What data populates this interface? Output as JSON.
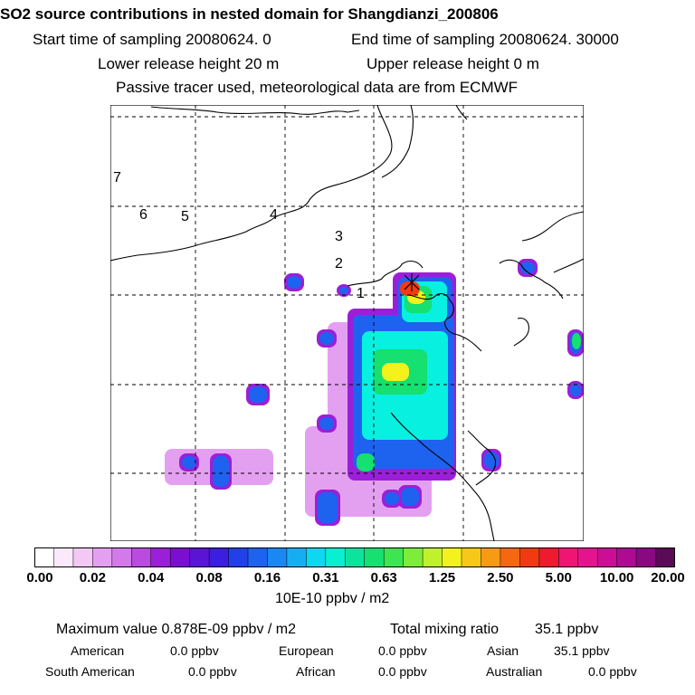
{
  "header": {
    "title": "SO2 source contributions in nested domain for Shangdianzi_200806",
    "start": "Start time of sampling 20080624.     0",
    "end": "End time of sampling 20080624. 30000",
    "lower": "Lower release height   20 m",
    "upper": "Upper release height    0 m",
    "note": "Passive tracer used, meteorological data are from ECMWF"
  },
  "chart_data": {
    "type": "heatmap",
    "title": "SO2 source contributions in nested domain for Shangdianzi_200806",
    "colorbar": {
      "ticks": [
        "0.00",
        "0.02",
        "0.04",
        "0.08",
        "0.16",
        "0.31",
        "0.63",
        "1.25",
        "2.50",
        "5.00",
        "10.00",
        "20.00"
      ],
      "colors": [
        "#ffffff",
        "#fbe9fb",
        "#f3c8f5",
        "#e4a0f0",
        "#d27ae9",
        "#b94be0",
        "#9b1fd8",
        "#7a0fd2",
        "#5a14d6",
        "#3c1ee0",
        "#2140ea",
        "#1e62f0",
        "#1a88f2",
        "#16aef3",
        "#0ed8f0",
        "#08f0d0",
        "#0ce39c",
        "#15e070",
        "#3be650",
        "#7ded3a",
        "#bff22a",
        "#f3f21c",
        "#f7c818",
        "#f79a14",
        "#f56810",
        "#f23a12",
        "#ee1a2e",
        "#ee1672",
        "#e6138e",
        "#cc0d96",
        "#ae0a92",
        "#8a0880",
        "#5a0a56"
      ],
      "unit": "10E-10 ppbv / m2"
    },
    "day_labels": [
      "1",
      "2",
      "3",
      "4",
      "5",
      "6",
      "7"
    ]
  },
  "summary": {
    "max_label": "Maximum value  0.878E-09 ppbv / m2",
    "total_label": "Total mixing ratio",
    "total_value": "35.1 ppbv",
    "regions": [
      {
        "name": "American",
        "value": "0.0 ppbv"
      },
      {
        "name": "European",
        "value": "0.0 ppbv"
      },
      {
        "name": "Asian",
        "value": "35.1 ppbv"
      },
      {
        "name": "South American",
        "value": "0.0 ppbv"
      },
      {
        "name": "African",
        "value": "0.0 ppbv"
      },
      {
        "name": "Australian",
        "value": "0.0 ppbv"
      }
    ]
  },
  "colors": {
    "cyan": "#08f0e0",
    "blue": "#1e62f0",
    "green": "#15e070",
    "yellow": "#f3f21c",
    "red": "#f23a12",
    "purple": "#9b1fd8",
    "lavender": "#e4a0f0"
  }
}
